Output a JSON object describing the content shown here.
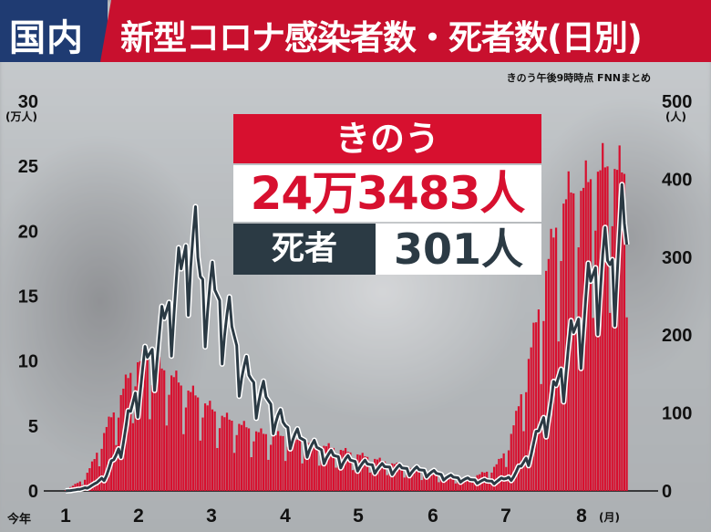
{
  "header": {
    "tag": "国内",
    "title": "新型コロナ感染者数・死者数(日別)"
  },
  "source": "きのう午後9時時点 FNNまとめ",
  "panel": {
    "label": "きのう",
    "cases": "24万3483人",
    "deaths_label": "死者",
    "deaths": "301人"
  },
  "chart_data": {
    "type": "bar",
    "left_axis": {
      "unit": "(万人)",
      "ticks": [
        0,
        5,
        10,
        15,
        20,
        25,
        30
      ],
      "ylim": [
        0,
        30
      ]
    },
    "right_axis": {
      "unit": "(人)",
      "ticks": [
        0,
        100,
        200,
        300,
        400,
        500
      ],
      "ylim": [
        0,
        500
      ]
    },
    "x_axis": {
      "first_label": "今年",
      "labels": [
        "1",
        "2",
        "3",
        "4",
        "5",
        "6",
        "7",
        "8"
      ],
      "unit": "(月)"
    },
    "series": [
      {
        "name": "感染者数",
        "axis": "left",
        "color": "#d7102f",
        "anchors": [
          [
            1,
            0.1
          ],
          [
            1.1,
            0.4
          ],
          [
            1.25,
            0.9
          ],
          [
            1.4,
            2.5
          ],
          [
            1.55,
            4.8
          ],
          [
            1.7,
            6.5
          ],
          [
            1.8,
            8.0
          ],
          [
            1.95,
            9.8
          ],
          [
            2.1,
            10.2
          ],
          [
            2.2,
            9.9
          ],
          [
            2.35,
            9.3
          ],
          [
            2.5,
            8.7
          ],
          [
            2.6,
            8.0
          ],
          [
            2.75,
            7.5
          ],
          [
            2.9,
            6.8
          ],
          [
            3.05,
            6.1
          ],
          [
            3.2,
            5.6
          ],
          [
            3.4,
            5.1
          ],
          [
            3.55,
            4.7
          ],
          [
            3.7,
            4.4
          ],
          [
            3.85,
            4.3
          ],
          [
            4.0,
            4.2
          ],
          [
            4.2,
            3.9
          ],
          [
            4.4,
            3.6
          ],
          [
            4.6,
            3.4
          ],
          [
            4.8,
            3.1
          ],
          [
            5.0,
            2.8
          ],
          [
            5.2,
            2.5
          ],
          [
            5.4,
            2.2
          ],
          [
            5.6,
            1.9
          ],
          [
            5.8,
            1.6
          ],
          [
            6.0,
            1.3
          ],
          [
            6.2,
            1.1
          ],
          [
            6.4,
            1.0
          ],
          [
            6.6,
            1.2
          ],
          [
            6.75,
            1.5
          ],
          [
            6.85,
            1.9
          ],
          [
            6.95,
            2.6
          ],
          [
            7.05,
            4.0
          ],
          [
            7.15,
            6.0
          ],
          [
            7.25,
            8.8
          ],
          [
            7.35,
            11.5
          ],
          [
            7.45,
            14.5
          ],
          [
            7.55,
            17.5
          ],
          [
            7.65,
            20.0
          ],
          [
            7.75,
            22.0
          ],
          [
            7.85,
            23.0
          ],
          [
            7.95,
            22.8
          ],
          [
            8.05,
            23.5
          ],
          [
            8.2,
            24.5
          ],
          [
            8.35,
            25.0
          ],
          [
            8.5,
            24.7
          ],
          [
            8.62,
            24.3
          ]
        ],
        "weekly_low_ratio": 0.55
      },
      {
        "name": "死者数",
        "axis": "right",
        "color": "#2b3a44",
        "anchors": [
          [
            1,
            0
          ],
          [
            1.2,
            2
          ],
          [
            1.4,
            8
          ],
          [
            1.55,
            20
          ],
          [
            1.7,
            45
          ],
          [
            1.8,
            70
          ],
          [
            1.9,
            100
          ],
          [
            2.0,
            135
          ],
          [
            2.1,
            160
          ],
          [
            2.2,
            175
          ],
          [
            2.3,
            195
          ],
          [
            2.4,
            225
          ],
          [
            2.5,
            255
          ],
          [
            2.58,
            270
          ],
          [
            2.65,
            300
          ],
          [
            2.7,
            320
          ],
          [
            2.78,
            310
          ],
          [
            2.85,
            260
          ],
          [
            2.95,
            255
          ],
          [
            3.05,
            245
          ],
          [
            3.15,
            225
          ],
          [
            3.25,
            210
          ],
          [
            3.35,
            175
          ],
          [
            3.45,
            150
          ],
          [
            3.55,
            135
          ],
          [
            3.7,
            120
          ],
          [
            3.85,
            100
          ],
          [
            4.0,
            80
          ],
          [
            4.2,
            65
          ],
          [
            4.4,
            55
          ],
          [
            4.6,
            45
          ],
          [
            4.8,
            40
          ],
          [
            5.0,
            35
          ],
          [
            5.3,
            30
          ],
          [
            5.6,
            28
          ],
          [
            5.9,
            25
          ],
          [
            6.2,
            18
          ],
          [
            6.5,
            14
          ],
          [
            6.8,
            12
          ],
          [
            7.0,
            15
          ],
          [
            7.1,
            20
          ],
          [
            7.2,
            30
          ],
          [
            7.3,
            45
          ],
          [
            7.4,
            65
          ],
          [
            7.5,
            90
          ],
          [
            7.6,
            110
          ],
          [
            7.7,
            140
          ],
          [
            7.8,
            170
          ],
          [
            7.9,
            195
          ],
          [
            8.0,
            220
          ],
          [
            8.1,
            250
          ],
          [
            8.2,
            275
          ],
          [
            8.3,
            290
          ],
          [
            8.4,
            275
          ],
          [
            8.5,
            310
          ],
          [
            8.57,
            340
          ],
          [
            8.62,
            301
          ]
        ]
      }
    ]
  }
}
